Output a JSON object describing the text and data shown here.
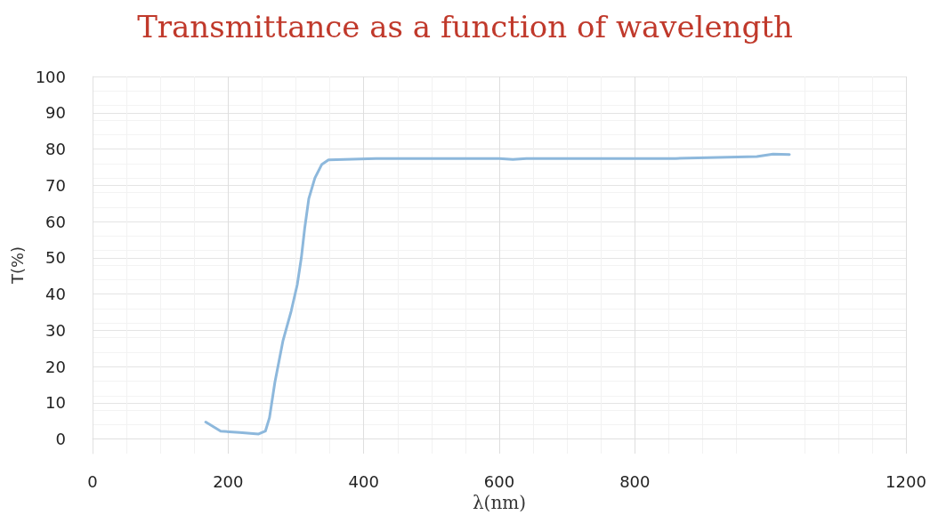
{
  "chart_data": {
    "type": "line",
    "title": "Transmittance as a function of wavelength",
    "xlabel": "λ(nm)",
    "ylabel": "T(%)",
    "x": [
      167,
      189,
      217,
      245,
      255,
      261,
      269,
      281,
      293,
      302,
      308,
      313,
      319,
      328,
      338,
      348,
      418,
      600,
      620,
      640,
      800,
      860,
      980,
      1004,
      1028
    ],
    "series": [
      {
        "color": "#8db8dc",
        "values": [
          4.7,
          2.2,
          1.8,
          1.4,
          2.2,
          5.9,
          15.7,
          27.2,
          35.3,
          42.6,
          50,
          58.2,
          66.3,
          72,
          75.7,
          77,
          77.4,
          77.4,
          77.1,
          77.4,
          77.4,
          77.4,
          77.9,
          78.6,
          78.5
        ]
      }
    ],
    "xlim": [
      0,
      1200
    ],
    "xticks": [
      0,
      200,
      400,
      600,
      800,
      1200
    ],
    "ylim": [
      -4,
      100
    ],
    "yticks": [
      0,
      10,
      20,
      30,
      40,
      50,
      60,
      70,
      80,
      90,
      100
    ],
    "grid": true,
    "marker": "none",
    "line_style": "solid"
  }
}
